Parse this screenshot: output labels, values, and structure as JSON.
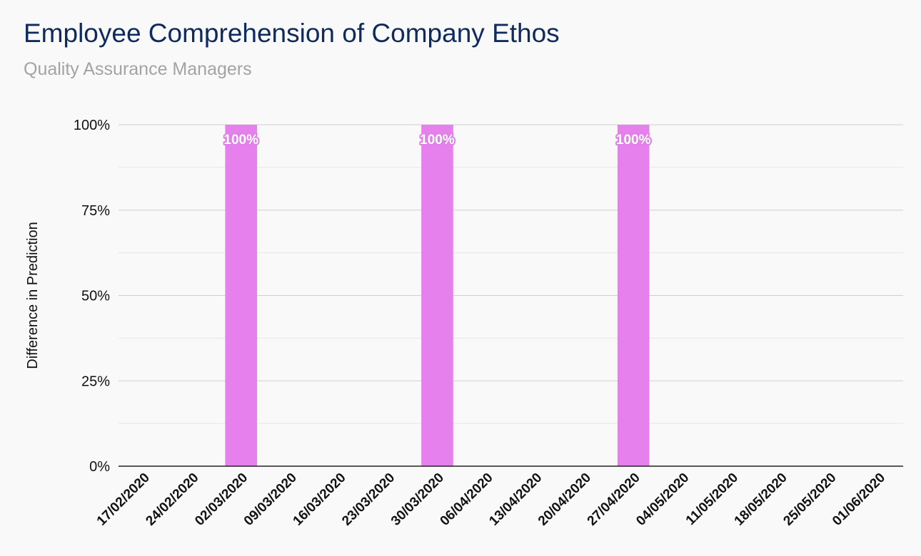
{
  "chart_data": {
    "type": "bar",
    "title": "Employee Comprehension of Company Ethos",
    "subtitle": "Quality Assurance Managers",
    "ylabel": "Difference in Prediction",
    "xlabel": "",
    "ylim": [
      0,
      100
    ],
    "y_ticks": [
      "0%",
      "25%",
      "50%",
      "75%",
      "100%"
    ],
    "grid": true,
    "legend": "none",
    "bar_color": "#e580ec",
    "categories": [
      "17/02/2020",
      "24/02/2020",
      "02/03/2020",
      "09/03/2020",
      "16/03/2020",
      "23/03/2020",
      "30/03/2020",
      "06/04/2020",
      "13/04/2020",
      "20/04/2020",
      "27/04/2020",
      "04/05/2020",
      "11/05/2020",
      "18/05/2020",
      "25/05/2020",
      "01/06/2020"
    ],
    "values": [
      0,
      0,
      100,
      0,
      0,
      0,
      100,
      0,
      0,
      0,
      100,
      0,
      0,
      0,
      0,
      0
    ],
    "data_labels": [
      "",
      "",
      "100%",
      "",
      "",
      "",
      "100%",
      "",
      "",
      "",
      "100%",
      "",
      "",
      "",
      "",
      ""
    ]
  }
}
